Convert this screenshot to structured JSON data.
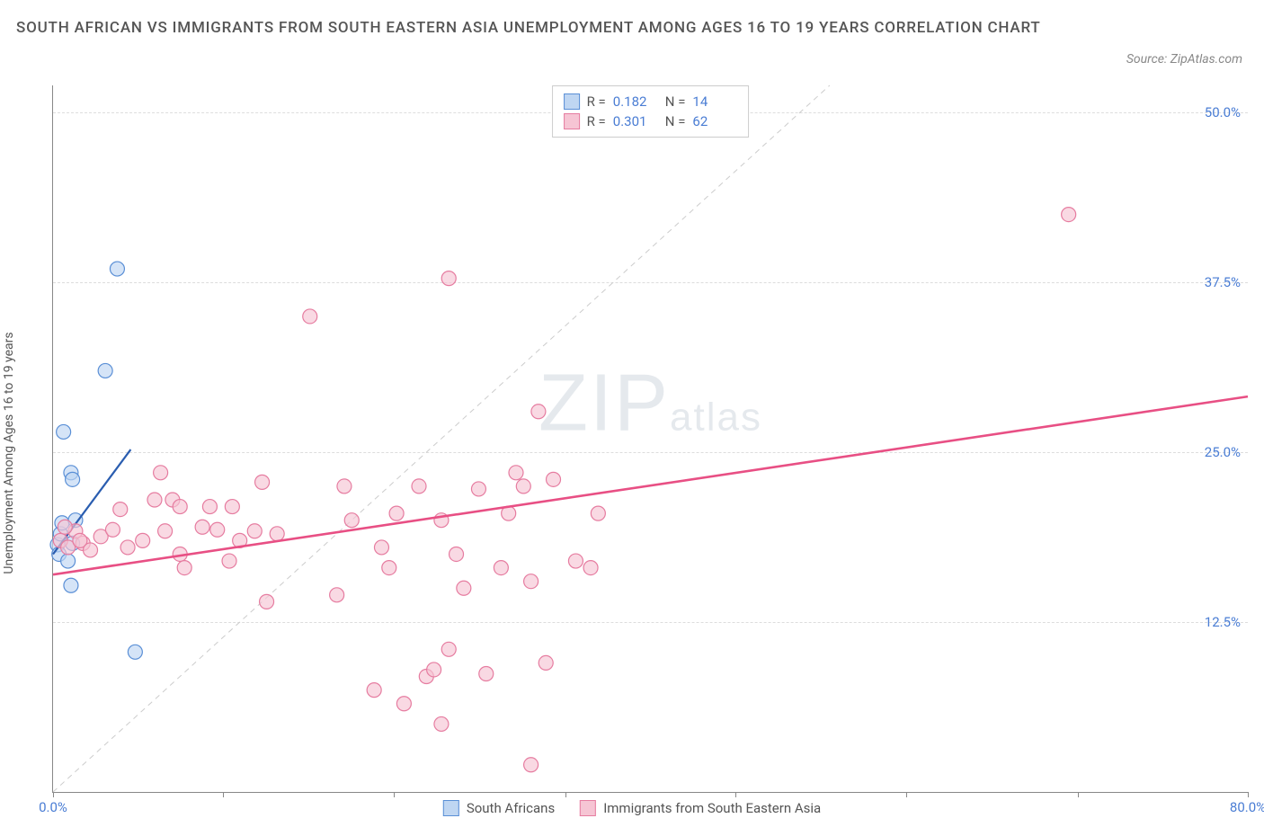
{
  "title": "SOUTH AFRICAN VS IMMIGRANTS FROM SOUTH EASTERN ASIA UNEMPLOYMENT AMONG AGES 16 TO 19 YEARS CORRELATION CHART",
  "source": "Source: ZipAtlas.com",
  "watermark": {
    "z": "Z",
    "ip": "IP",
    "atlas": "atlas"
  },
  "chart": {
    "type": "scatter",
    "ylabel": "Unemployment Among Ages 16 to 19 years",
    "xlim": [
      0,
      80
    ],
    "ylim": [
      0,
      52
    ],
    "xticks": [
      0,
      11.4,
      22.8,
      34.3,
      45.7,
      57.1,
      68.6,
      80
    ],
    "xlabels": {
      "0": "0.0%",
      "80": "80.0%"
    },
    "yticks": [
      12.5,
      25.0,
      37.5,
      50.0
    ],
    "ylabels": [
      "12.5%",
      "25.0%",
      "37.5%",
      "50.0%"
    ],
    "grid_color": "#dddddd",
    "axis_color": "#888888",
    "background_color": "#ffffff",
    "tick_label_color": "#4a7dd4",
    "marker_radius": 8,
    "marker_stroke_width": 1.2,
    "diagonal": {
      "color": "#cccccc",
      "dash": "6,5",
      "width": 1
    },
    "series": [
      {
        "name": "South Africans",
        "fill": "#bfd6f2",
        "stroke": "#5a8fd6",
        "R": "0.182",
        "N": "14",
        "trend": {
          "color": "#2a5db0",
          "width": 2.2,
          "x1": 0,
          "y1": 17.5,
          "x2": 5.2,
          "y2": 25.2
        },
        "points": [
          [
            0.3,
            18.2
          ],
          [
            0.4,
            17.5
          ],
          [
            0.5,
            19.0
          ],
          [
            0.6,
            19.8
          ],
          [
            1.0,
            17.0
          ],
          [
            1.3,
            18.3
          ],
          [
            1.2,
            23.5
          ],
          [
            1.3,
            23.0
          ],
          [
            0.7,
            26.5
          ],
          [
            4.3,
            38.5
          ],
          [
            3.5,
            31.0
          ],
          [
            1.2,
            15.2
          ],
          [
            5.5,
            10.3
          ],
          [
            1.5,
            20.0
          ]
        ]
      },
      {
        "name": "Immigrants from South Eastern Asia",
        "fill": "#f6c5d4",
        "stroke": "#e67ca0",
        "R": "0.301",
        "N": "62",
        "trend": {
          "color": "#e84f84",
          "width": 2.6,
          "x1": 0,
          "y1": 16.0,
          "x2": 80,
          "y2": 29.1
        },
        "points": [
          [
            0.5,
            18.5
          ],
          [
            1.0,
            18.0
          ],
          [
            1.5,
            19.2
          ],
          [
            2.0,
            18.3
          ],
          [
            0.8,
            19.5
          ],
          [
            1.8,
            18.5
          ],
          [
            2.5,
            17.8
          ],
          [
            3.2,
            18.8
          ],
          [
            4.0,
            19.3
          ],
          [
            5.0,
            18.0
          ],
          [
            4.5,
            20.8
          ],
          [
            6.0,
            18.5
          ],
          [
            6.8,
            21.5
          ],
          [
            7.5,
            19.2
          ],
          [
            8.0,
            21.5
          ],
          [
            8.5,
            21.0
          ],
          [
            8.5,
            17.5
          ],
          [
            10.0,
            19.5
          ],
          [
            10.5,
            21.0
          ],
          [
            11.0,
            19.3
          ],
          [
            12.0,
            21.0
          ],
          [
            12.5,
            18.5
          ],
          [
            11.8,
            17.0
          ],
          [
            13.5,
            19.2
          ],
          [
            14.0,
            22.8
          ],
          [
            15.0,
            19.0
          ],
          [
            17.2,
            35.0
          ],
          [
            19.0,
            14.5
          ],
          [
            19.5,
            22.5
          ],
          [
            20.0,
            20.0
          ],
          [
            21.5,
            7.5
          ],
          [
            22.0,
            18.0
          ],
          [
            22.5,
            16.5
          ],
          [
            23.0,
            20.5
          ],
          [
            23.5,
            6.5
          ],
          [
            24.5,
            22.5
          ],
          [
            25.0,
            8.5
          ],
          [
            25.5,
            9.0
          ],
          [
            26.0,
            20.0
          ],
          [
            26.5,
            37.8
          ],
          [
            27.0,
            17.5
          ],
          [
            27.5,
            15.0
          ],
          [
            28.5,
            22.3
          ],
          [
            29.0,
            8.7
          ],
          [
            30.0,
            16.5
          ],
          [
            30.5,
            20.5
          ],
          [
            31.5,
            22.5
          ],
          [
            32.5,
            28.0
          ],
          [
            32.0,
            15.5
          ],
          [
            32.0,
            2.0
          ],
          [
            33.0,
            9.5
          ],
          [
            35.0,
            17.0
          ],
          [
            36.5,
            20.5
          ],
          [
            26.5,
            10.5
          ],
          [
            26.0,
            5.0
          ],
          [
            31.0,
            23.5
          ],
          [
            33.5,
            23.0
          ],
          [
            36.0,
            16.5
          ],
          [
            14.3,
            14.0
          ],
          [
            7.2,
            23.5
          ],
          [
            8.8,
            16.5
          ],
          [
            68.0,
            42.5
          ]
        ]
      }
    ]
  },
  "legend_top_labels": {
    "R": "R =",
    "N": "N ="
  },
  "legend_bottom": [
    "South Africans",
    "Immigrants from South Eastern Asia"
  ]
}
